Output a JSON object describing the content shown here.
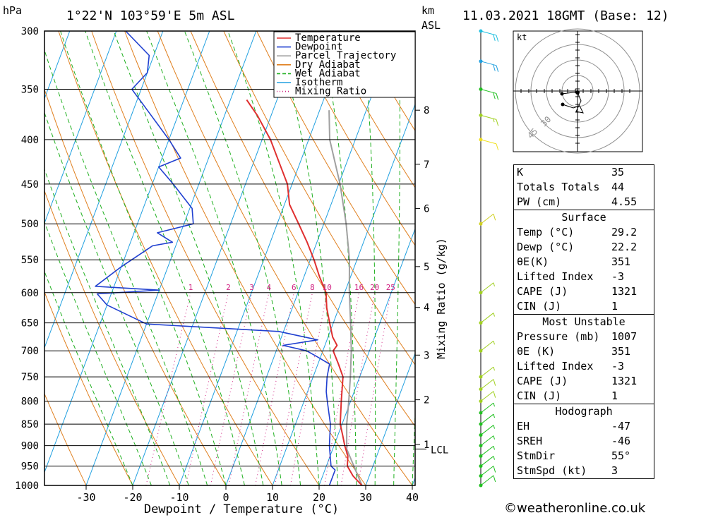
{
  "header": {
    "pressure_unit": "hPa",
    "location": "1°22'N 103°59'E 5m ASL",
    "km_unit_1": "km",
    "km_unit_2": "ASL",
    "datetime": "11.03.2021 18GMT (Base: 12)"
  },
  "chart_data": {
    "type": "skew-t",
    "xlabel": "Dewpoint / Temperature (°C)",
    "mixing_ratio_label": "Mixing Ratio (g/kg)",
    "pressure_levels": [
      300,
      350,
      400,
      450,
      500,
      550,
      600,
      650,
      700,
      750,
      800,
      850,
      900,
      950,
      1000
    ],
    "temperature_ticks": [
      -30,
      -20,
      -10,
      0,
      10,
      20,
      30,
      40
    ],
    "km_ticks": [
      {
        "label": "1",
        "p": 897
      },
      {
        "label": "2",
        "p": 797
      },
      {
        "label": "3",
        "p": 708
      },
      {
        "label": "4",
        "p": 624
      },
      {
        "label": "5",
        "p": 560
      },
      {
        "label": "6",
        "p": 480
      },
      {
        "label": "7",
        "p": 427
      },
      {
        "label": "8",
        "p": 370
      }
    ],
    "lcl": {
      "label": "LCL",
      "p": 908
    },
    "mixing_ratio_lines": [
      {
        "label": "1",
        "w": 1
      },
      {
        "label": "2",
        "w": 2
      },
      {
        "label": "3",
        "w": 3
      },
      {
        "label": "4",
        "w": 4
      },
      {
        "label": "6",
        "w": 6
      },
      {
        "label": "8",
        "w": 8
      },
      {
        "label": "10",
        "w": 10
      },
      {
        "label": "16",
        "w": 16
      },
      {
        "label": "20",
        "w": 20
      },
      {
        "label": "25",
        "w": 25
      }
    ],
    "legend": [
      {
        "name": "Temperature",
        "color": "#e03030",
        "style": "solid"
      },
      {
        "name": "Dewpoint",
        "color": "#2040d0",
        "style": "solid"
      },
      {
        "name": "Parcel Trajectory",
        "color": "#a0a0a0",
        "style": "solid"
      },
      {
        "name": "Dry Adiabat",
        "color": "#e08020",
        "style": "solid"
      },
      {
        "name": "Wet Adiabat",
        "color": "#20b020",
        "style": "dashed"
      },
      {
        "name": "Isotherm",
        "color": "#20a0e0",
        "style": "solid"
      },
      {
        "name": "Mixing Ratio",
        "color": "#d02080",
        "style": "dotted"
      }
    ],
    "series": [
      {
        "name": "Temperature",
        "points": [
          [
            1000,
            29.2
          ],
          [
            975,
            26.5
          ],
          [
            950,
            24.5
          ],
          [
            925,
            23.8
          ],
          [
            900,
            22.3
          ],
          [
            875,
            21.0
          ],
          [
            850,
            19.6
          ],
          [
            800,
            18.0
          ],
          [
            750,
            16.4
          ],
          [
            725,
            14.4
          ],
          [
            700,
            12.2
          ],
          [
            690,
            12.6
          ],
          [
            675,
            11.0
          ],
          [
            650,
            9.2
          ],
          [
            625,
            7.4
          ],
          [
            600,
            6.0
          ],
          [
            575,
            3.3
          ],
          [
            550,
            0.8
          ],
          [
            525,
            -2.1
          ],
          [
            500,
            -5.4
          ],
          [
            475,
            -8.9
          ],
          [
            450,
            -11.0
          ],
          [
            425,
            -14.5
          ],
          [
            400,
            -18.2
          ],
          [
            375,
            -23.0
          ],
          [
            360,
            -26.5
          ]
        ]
      },
      {
        "name": "Dewpoint",
        "points": [
          [
            1000,
            22.2
          ],
          [
            960,
            22.2
          ],
          [
            950,
            21.0
          ],
          [
            900,
            19.0
          ],
          [
            850,
            17.5
          ],
          [
            800,
            15.0
          ],
          [
            780,
            14.0
          ],
          [
            750,
            13.0
          ],
          [
            725,
            12.5
          ],
          [
            710,
            9.0
          ],
          [
            700,
            6.5
          ],
          [
            690,
            1.0
          ],
          [
            680,
            8.0
          ],
          [
            665,
            -1.0
          ],
          [
            652,
            -30.0
          ],
          [
            620,
            -40.0
          ],
          [
            602,
            -43.0
          ],
          [
            596,
            -30.0
          ],
          [
            590,
            -44.0
          ],
          [
            560,
            -40.0
          ],
          [
            530,
            -35.0
          ],
          [
            525,
            -31.0
          ],
          [
            512,
            -35.0
          ],
          [
            500,
            -28.0
          ],
          [
            480,
            -29.5
          ],
          [
            450,
            -35.5
          ],
          [
            430,
            -40.0
          ],
          [
            420,
            -36.0
          ],
          [
            400,
            -40.0
          ],
          [
            370,
            -47.0
          ],
          [
            350,
            -52.0
          ],
          [
            335,
            -50.0
          ],
          [
            320,
            -51.0
          ],
          [
            300,
            -58.0
          ]
        ]
      },
      {
        "name": "Parcel Trajectory",
        "points": [
          [
            1000,
            29.2
          ],
          [
            908,
            23.0
          ],
          [
            850,
            21.0
          ],
          [
            800,
            19.6
          ],
          [
            750,
            18.0
          ],
          [
            700,
            16.1
          ],
          [
            650,
            13.7
          ],
          [
            600,
            11.0
          ],
          [
            550,
            8.4
          ],
          [
            500,
            4.8
          ],
          [
            450,
            0.3
          ],
          [
            400,
            -5.5
          ],
          [
            370,
            -8.0
          ]
        ]
      }
    ],
    "wind_barbs": [
      {
        "p": 1000,
        "speed_kt": 10,
        "color": "#20c020"
      },
      {
        "p": 975,
        "speed_kt": 10,
        "color": "#20c020"
      },
      {
        "p": 950,
        "speed_kt": 5,
        "color": "#20c020"
      },
      {
        "p": 925,
        "speed_kt": 5,
        "color": "#20c020"
      },
      {
        "p": 900,
        "speed_kt": 5,
        "color": "#20c020"
      },
      {
        "p": 875,
        "speed_kt": 5,
        "color": "#20c020"
      },
      {
        "p": 850,
        "speed_kt": 5,
        "color": "#20c020"
      },
      {
        "p": 825,
        "speed_kt": 5,
        "color": "#20c020"
      },
      {
        "p": 800,
        "speed_kt": 10,
        "color": "#a0d020"
      },
      {
        "p": 775,
        "speed_kt": 10,
        "color": "#a0d020"
      },
      {
        "p": 750,
        "speed_kt": 5,
        "color": "#a0d020"
      },
      {
        "p": 700,
        "speed_kt": 5,
        "color": "#a0d020"
      },
      {
        "p": 650,
        "speed_kt": 5,
        "color": "#a0d020"
      },
      {
        "p": 600,
        "speed_kt": 5,
        "color": "#a0d020"
      },
      {
        "p": 500,
        "speed_kt": 10,
        "color": "#d0d020"
      },
      {
        "p": 400,
        "speed_kt": 10,
        "color": "#f0e020"
      },
      {
        "p": 375,
        "speed_kt": 15,
        "color": "#a0d020"
      },
      {
        "p": 350,
        "speed_kt": 20,
        "color": "#20c020"
      },
      {
        "p": 325,
        "speed_kt": 20,
        "color": "#20a0e0"
      },
      {
        "p": 300,
        "speed_kt": 20,
        "color": "#20c0e0"
      }
    ]
  },
  "hodograph": {
    "unit": "kt",
    "ring_labels": [
      "45",
      "30"
    ]
  },
  "indices": {
    "main": [
      {
        "label": "K",
        "value": "35"
      },
      {
        "label": "Totals Totals",
        "value": "44"
      },
      {
        "label": "PW (cm)",
        "value": "4.55"
      }
    ],
    "surface_title": "Surface",
    "surface": [
      {
        "label": "Temp (°C)",
        "value": "29.2"
      },
      {
        "label": "Dewp (°C)",
        "value": "22.2"
      },
      {
        "label": "θE(K)",
        "value": "351"
      },
      {
        "label": "Lifted Index",
        "value": "-3"
      },
      {
        "label": "CAPE (J)",
        "value": "1321"
      },
      {
        "label": "CIN (J)",
        "value": "1"
      }
    ],
    "mu_title": "Most Unstable",
    "mu": [
      {
        "label": "Pressure (mb)",
        "value": "1007"
      },
      {
        "label": "θE (K)",
        "value": "351"
      },
      {
        "label": "Lifted Index",
        "value": "-3"
      },
      {
        "label": "CAPE (J)",
        "value": "1321"
      },
      {
        "label": "CIN (J)",
        "value": "1"
      }
    ],
    "hodo_title": "Hodograph",
    "hodo": [
      {
        "label": "EH",
        "value": "-47"
      },
      {
        "label": "SREH",
        "value": "-46"
      },
      {
        "label": "StmDir",
        "value": "55°"
      },
      {
        "label": "StmSpd (kt)",
        "value": "3"
      }
    ]
  },
  "credit": "©weatheronline.co.uk"
}
